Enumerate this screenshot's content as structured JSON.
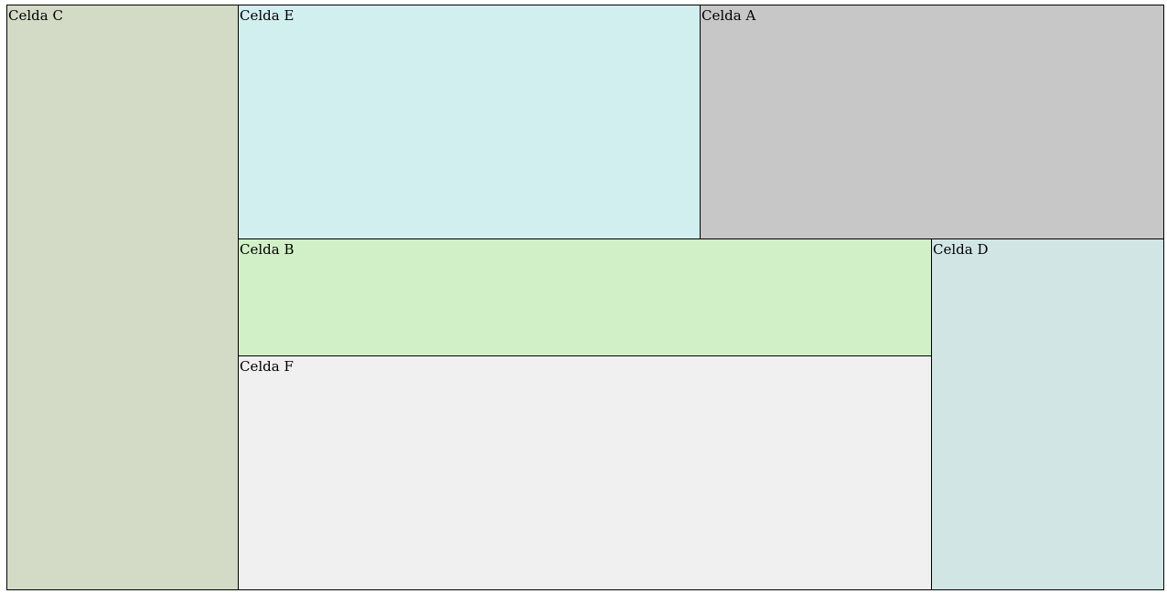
{
  "cells": {
    "c": {
      "label": "Celda C",
      "color": "#d3dbc7"
    },
    "e": {
      "label": "Celda E",
      "color": "#d2eff0"
    },
    "a": {
      "label": "Celda A",
      "color": "#c7c7c7"
    },
    "b": {
      "label": "Celda B",
      "color": "#d2f0c7"
    },
    "f": {
      "label": "Celda F",
      "color": "#f0f0f0"
    },
    "d": {
      "label": "Celda D",
      "color": "#d2e5e5"
    }
  }
}
